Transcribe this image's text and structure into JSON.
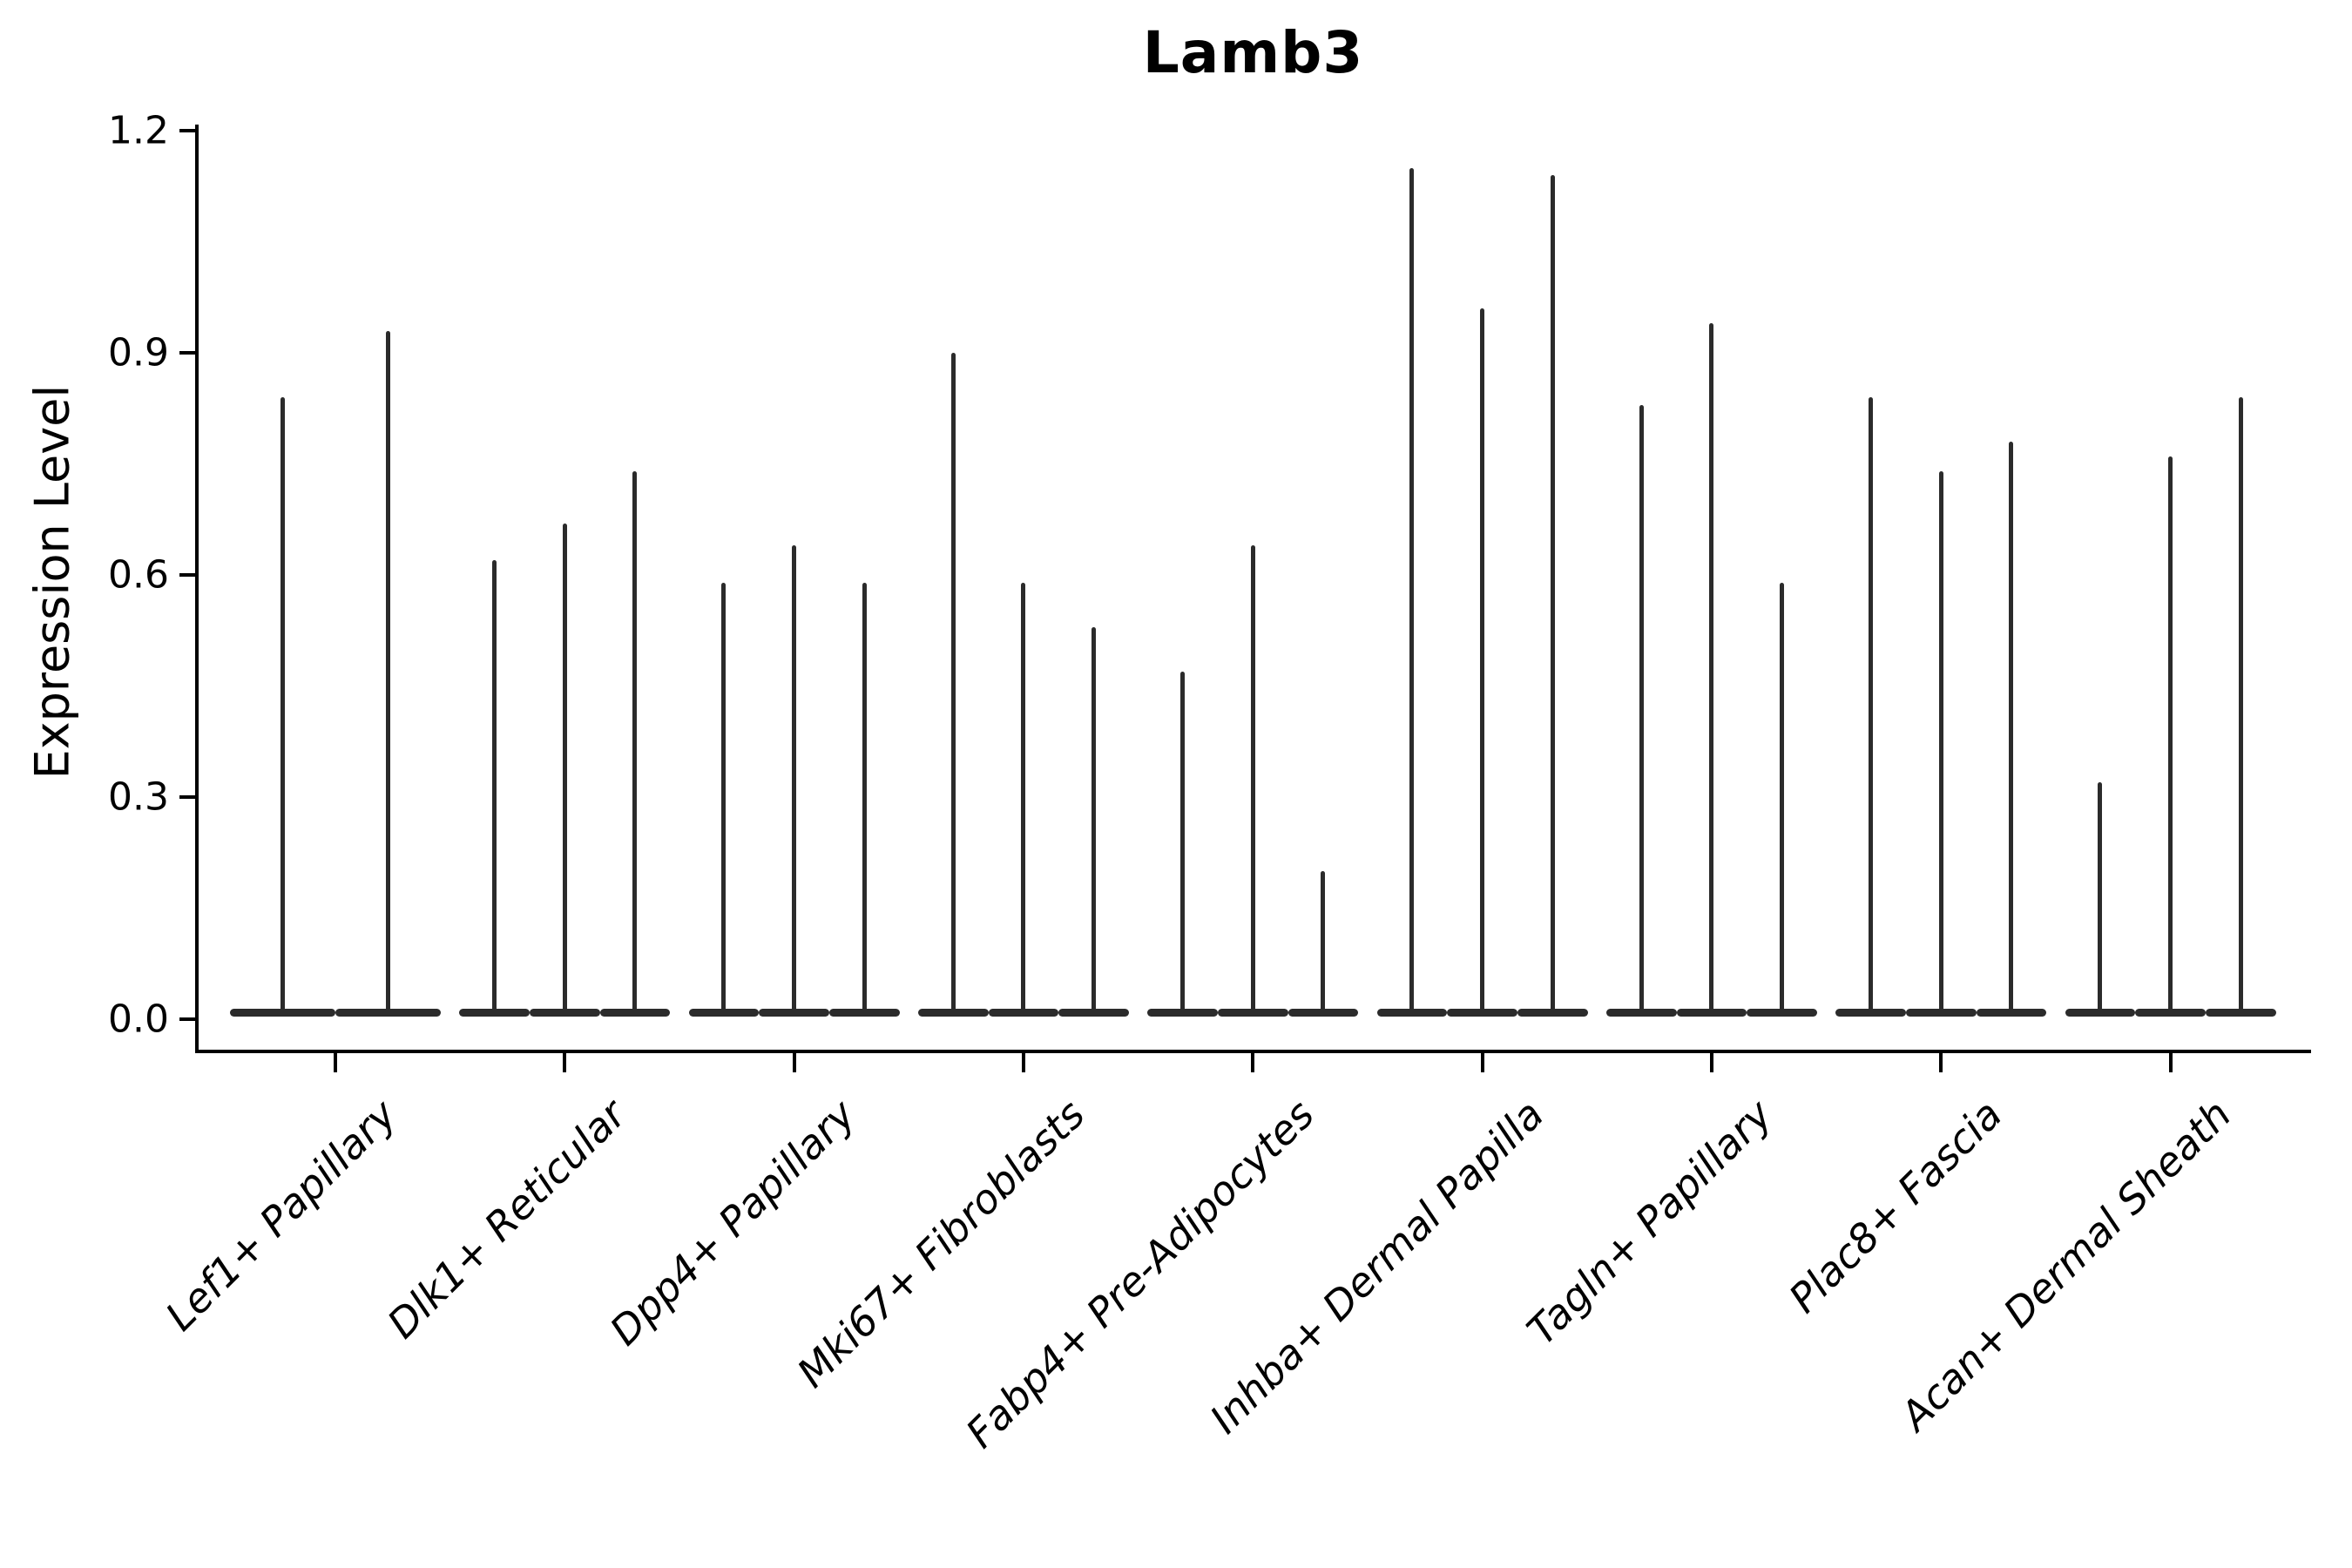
{
  "title": "Lamb3",
  "axes": {
    "ylabel": "Expression Level",
    "ytick_labels": [
      "0.0",
      "0.3",
      "0.6",
      "0.9",
      "1.2"
    ]
  },
  "colors": {
    "violin": "#2b2b2b",
    "axis": "#000000",
    "text": "#000000",
    "background": "#ffffff"
  },
  "chart_data": {
    "type": "violin",
    "title": "Lamb3",
    "xlabel": "",
    "ylabel": "Expression Level",
    "ylim": [
      0.0,
      1.2
    ],
    "yticks": [
      0.0,
      0.3,
      0.6,
      0.9,
      1.2
    ],
    "grid": false,
    "legend": "none",
    "style": "needle-thin violins with wide flat base at 0 (most cells at zero expression), single dark color",
    "categories": [
      "Lef1+ Papillary",
      "Dlk1+ Reticular",
      "Dpp4+ Papillary",
      "Mki67+ Fibroblasts",
      "Fabp4+ Pre-Adipocytes",
      "Inhba+ Dermal Papilla",
      "Tagln+ Papillary",
      "Plac8+ Fascia",
      "Acan+ Dermal Sheath"
    ],
    "groups": [
      {
        "category": "Lef1+ Papillary",
        "violin_peaks": [
          0.84,
          0.93
        ]
      },
      {
        "category": "Dlk1+ Reticular",
        "violin_peaks": [
          0.62,
          0.67,
          0.74
        ]
      },
      {
        "category": "Dpp4+ Papillary",
        "violin_peaks": [
          0.59,
          0.64,
          0.59
        ]
      },
      {
        "category": "Mki67+ Fibroblasts",
        "violin_peaks": [
          0.9,
          0.59,
          0.53
        ]
      },
      {
        "category": "Fabp4+ Pre-Adipocytes",
        "violin_peaks": [
          0.47,
          0.64,
          0.2
        ]
      },
      {
        "category": "Inhba+ Dermal Papilla",
        "violin_peaks": [
          1.15,
          0.96,
          1.14
        ]
      },
      {
        "category": "Tagln+ Papillary",
        "violin_peaks": [
          0.83,
          0.94,
          0.59
        ]
      },
      {
        "category": "Plac8+ Fascia",
        "violin_peaks": [
          0.84,
          0.74,
          0.78
        ]
      },
      {
        "category": "Acan+ Dermal Sheath",
        "violin_peaks": [
          0.32,
          0.76,
          0.84
        ]
      }
    ]
  }
}
